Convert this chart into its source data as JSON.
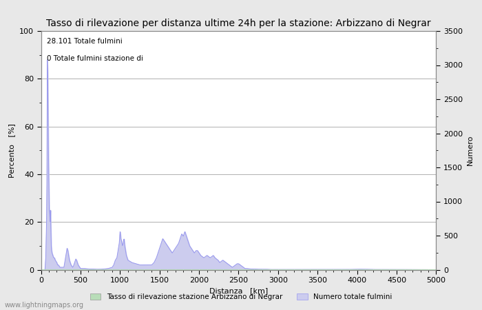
{
  "title": "Tasso di rilevazione per distanza ultime 24h per la stazione: Arbizzano di Negrar",
  "xlabel": "Distanza   [km]",
  "ylabel_left": "Percento   [%]",
  "ylabel_right": "Numero",
  "annotation_line1": "28.101 Totale fulmini",
  "annotation_line2": "0 Totale fulmini stazione di",
  "xlim": [
    0,
    5000
  ],
  "ylim_left": [
    0,
    100
  ],
  "ylim_right": [
    0,
    3500
  ],
  "xticks": [
    0,
    500,
    1000,
    1500,
    2000,
    2500,
    3000,
    3500,
    4000,
    4500,
    5000
  ],
  "yticks_left": [
    0,
    20,
    40,
    60,
    80,
    100
  ],
  "yticks_right": [
    0,
    500,
    1000,
    1500,
    2000,
    2500,
    3000,
    3500
  ],
  "legend_label_green": "Tasso di rilevazione stazione Arbizzano di Negrar",
  "legend_label_blue": "Numero totale fulmini",
  "watermark": "www.lightningmaps.org",
  "bg_color": "#e8e8e8",
  "plot_bg_color": "#ffffff",
  "grid_color": "#b0b0b0",
  "line_color": "#9999ee",
  "fill_color": "#ccccee",
  "green_fill_color": "#b8ddb8",
  "title_fontsize": 10,
  "label_fontsize": 8,
  "tick_fontsize": 8,
  "detection_rate": [
    [
      0,
      0
    ],
    [
      50,
      0
    ],
    [
      60,
      5
    ],
    [
      70,
      19
    ],
    [
      75,
      36
    ],
    [
      80,
      88
    ],
    [
      85,
      83
    ],
    [
      90,
      65
    ],
    [
      95,
      46
    ],
    [
      100,
      36
    ],
    [
      105,
      25
    ],
    [
      110,
      24
    ],
    [
      115,
      20
    ],
    [
      120,
      25
    ],
    [
      125,
      18
    ],
    [
      130,
      10
    ],
    [
      135,
      8
    ],
    [
      140,
      7
    ],
    [
      150,
      6
    ],
    [
      160,
      5
    ],
    [
      170,
      5
    ],
    [
      180,
      4
    ],
    [
      190,
      3.5
    ],
    [
      200,
      3
    ],
    [
      210,
      2
    ],
    [
      220,
      2
    ],
    [
      230,
      1.5
    ],
    [
      240,
      1
    ],
    [
      250,
      1
    ],
    [
      260,
      1
    ],
    [
      270,
      1
    ],
    [
      280,
      1
    ],
    [
      290,
      1
    ],
    [
      300,
      3
    ],
    [
      310,
      5
    ],
    [
      320,
      7
    ],
    [
      330,
      9
    ],
    [
      340,
      8
    ],
    [
      350,
      6
    ],
    [
      360,
      4
    ],
    [
      370,
      3
    ],
    [
      380,
      2
    ],
    [
      390,
      1.5
    ],
    [
      400,
      1
    ],
    [
      410,
      1.5
    ],
    [
      420,
      2.5
    ],
    [
      430,
      3.5
    ],
    [
      440,
      4.5
    ],
    [
      450,
      4
    ],
    [
      460,
      3
    ],
    [
      470,
      2
    ],
    [
      480,
      1.5
    ],
    [
      490,
      1
    ],
    [
      500,
      0.5
    ],
    [
      550,
      0.5
    ],
    [
      600,
      0.3
    ],
    [
      650,
      0.3
    ],
    [
      700,
      0.2
    ],
    [
      750,
      0.2
    ],
    [
      800,
      0.3
    ],
    [
      850,
      0.5
    ],
    [
      900,
      1
    ],
    [
      920,
      2
    ],
    [
      940,
      4
    ],
    [
      960,
      5
    ],
    [
      970,
      7
    ],
    [
      980,
      9
    ],
    [
      990,
      11
    ],
    [
      1000,
      16
    ],
    [
      1005,
      15
    ],
    [
      1010,
      13
    ],
    [
      1020,
      12
    ],
    [
      1030,
      10
    ],
    [
      1040,
      11
    ],
    [
      1050,
      13
    ],
    [
      1060,
      10
    ],
    [
      1070,
      8
    ],
    [
      1080,
      6
    ],
    [
      1090,
      5
    ],
    [
      1100,
      4
    ],
    [
      1150,
      3
    ],
    [
      1200,
      2.5
    ],
    [
      1250,
      2
    ],
    [
      1300,
      2
    ],
    [
      1350,
      2
    ],
    [
      1400,
      2
    ],
    [
      1430,
      3
    ],
    [
      1460,
      5
    ],
    [
      1480,
      7
    ],
    [
      1500,
      9
    ],
    [
      1520,
      11
    ],
    [
      1540,
      13
    ],
    [
      1560,
      12
    ],
    [
      1580,
      11
    ],
    [
      1600,
      10
    ],
    [
      1620,
      9
    ],
    [
      1640,
      8
    ],
    [
      1660,
      7
    ],
    [
      1680,
      8
    ],
    [
      1700,
      9
    ],
    [
      1720,
      10
    ],
    [
      1740,
      11
    ],
    [
      1760,
      13
    ],
    [
      1780,
      15
    ],
    [
      1800,
      14
    ],
    [
      1820,
      16
    ],
    [
      1840,
      14
    ],
    [
      1860,
      12
    ],
    [
      1880,
      10
    ],
    [
      1900,
      9
    ],
    [
      1920,
      8
    ],
    [
      1940,
      7
    ],
    [
      1960,
      8
    ],
    [
      1980,
      8
    ],
    [
      2000,
      7
    ],
    [
      2020,
      6
    ],
    [
      2040,
      5.5
    ],
    [
      2060,
      5
    ],
    [
      2080,
      5.5
    ],
    [
      2100,
      6
    ],
    [
      2120,
      5.5
    ],
    [
      2140,
      5
    ],
    [
      2160,
      5.5
    ],
    [
      2180,
      6
    ],
    [
      2200,
      5
    ],
    [
      2220,
      4.5
    ],
    [
      2240,
      4
    ],
    [
      2260,
      3
    ],
    [
      2280,
      3.5
    ],
    [
      2300,
      4
    ],
    [
      2320,
      3.5
    ],
    [
      2340,
      3
    ],
    [
      2360,
      2.5
    ],
    [
      2380,
      2
    ],
    [
      2400,
      1.5
    ],
    [
      2420,
      1
    ],
    [
      2440,
      1.5
    ],
    [
      2460,
      2
    ],
    [
      2480,
      2.5
    ],
    [
      2500,
      2.5
    ],
    [
      2520,
      2
    ],
    [
      2540,
      1.5
    ],
    [
      2560,
      1
    ],
    [
      2580,
      0.5
    ],
    [
      2600,
      0.5
    ],
    [
      2650,
      0.3
    ],
    [
      2700,
      0.3
    ],
    [
      2750,
      0.2
    ],
    [
      2800,
      0.2
    ],
    [
      2850,
      0.2
    ],
    [
      2900,
      0.1
    ],
    [
      2950,
      0.1
    ],
    [
      3000,
      0.1
    ],
    [
      3100,
      0.1
    ],
    [
      3200,
      0.1
    ],
    [
      3300,
      0.1
    ],
    [
      3400,
      0.1
    ],
    [
      3500,
      0.1
    ],
    [
      3600,
      0.1
    ],
    [
      3700,
      0.1
    ],
    [
      3800,
      0.1
    ],
    [
      3900,
      0.1
    ],
    [
      4000,
      0.2
    ],
    [
      4100,
      0.2
    ],
    [
      4200,
      0.1
    ],
    [
      4300,
      0.1
    ],
    [
      4400,
      0.1
    ],
    [
      4500,
      0.1
    ],
    [
      4600,
      0.1
    ],
    [
      4700,
      0.05
    ],
    [
      4800,
      0.05
    ],
    [
      4900,
      0.05
    ],
    [
      5000,
      0.0
    ]
  ]
}
